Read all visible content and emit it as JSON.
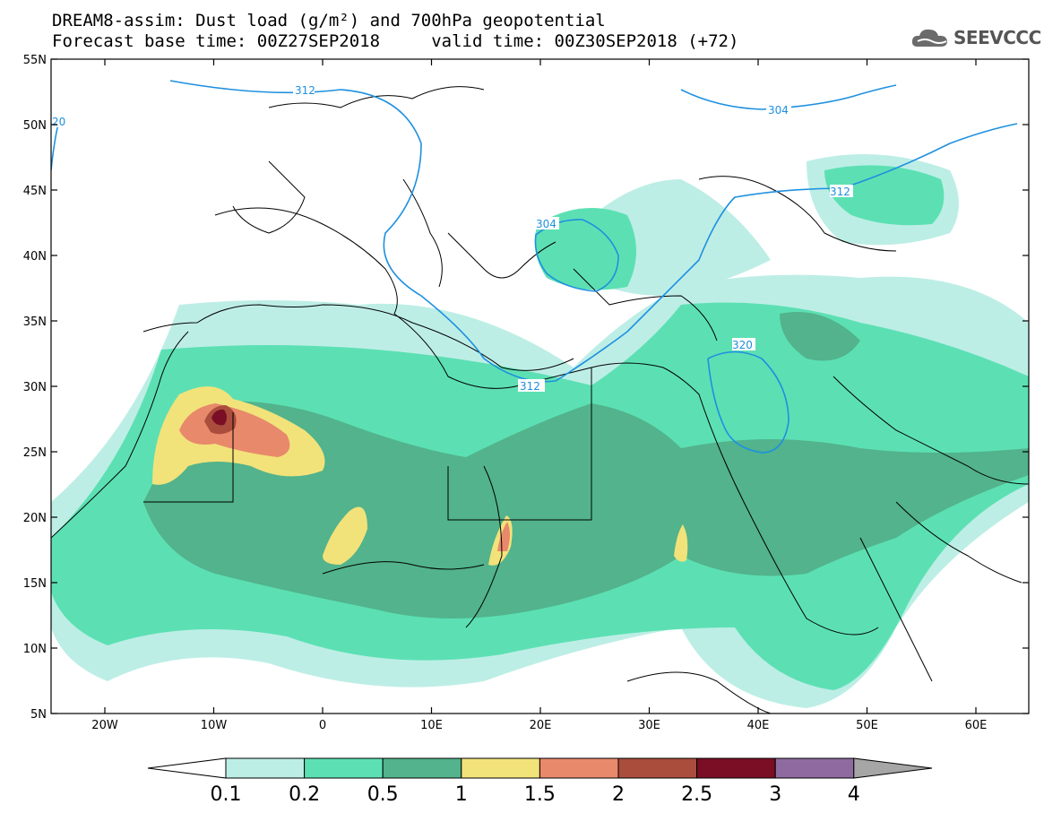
{
  "title": {
    "line1": "DREAM8-assim: Dust load (g/m²) and 700hPa geopotential",
    "line2": "Forecast base time: 00Z27SEP2018     valid time: 00Z30SEP2018 (+72)"
  },
  "logo": {
    "text": "SEEVCCC",
    "icon": "cloud-icon"
  },
  "map": {
    "lat_ticks": [
      "55N",
      "50N",
      "45N",
      "40N",
      "35N",
      "30N",
      "25N",
      "20N",
      "15N",
      "10N",
      "5N"
    ],
    "lon_ticks": [
      "20W",
      "10W",
      "0",
      "10E",
      "20E",
      "30E",
      "40E",
      "50E",
      "60E"
    ],
    "contour_labels": [
      "312",
      "20",
      "304",
      "304",
      "312",
      "320",
      "312"
    ]
  },
  "legend": {
    "colors": [
      "#bdeee6",
      "#5ce0b3",
      "#52b38c",
      "#f2e27a",
      "#e8896b",
      "#aa4d3d",
      "#7a0e25",
      "#8f6aa0",
      "#a6a6a6"
    ],
    "labels": [
      "0.1",
      "0.2",
      "0.5",
      "1",
      "1.5",
      "2",
      "2.5",
      "3",
      "4"
    ]
  }
}
